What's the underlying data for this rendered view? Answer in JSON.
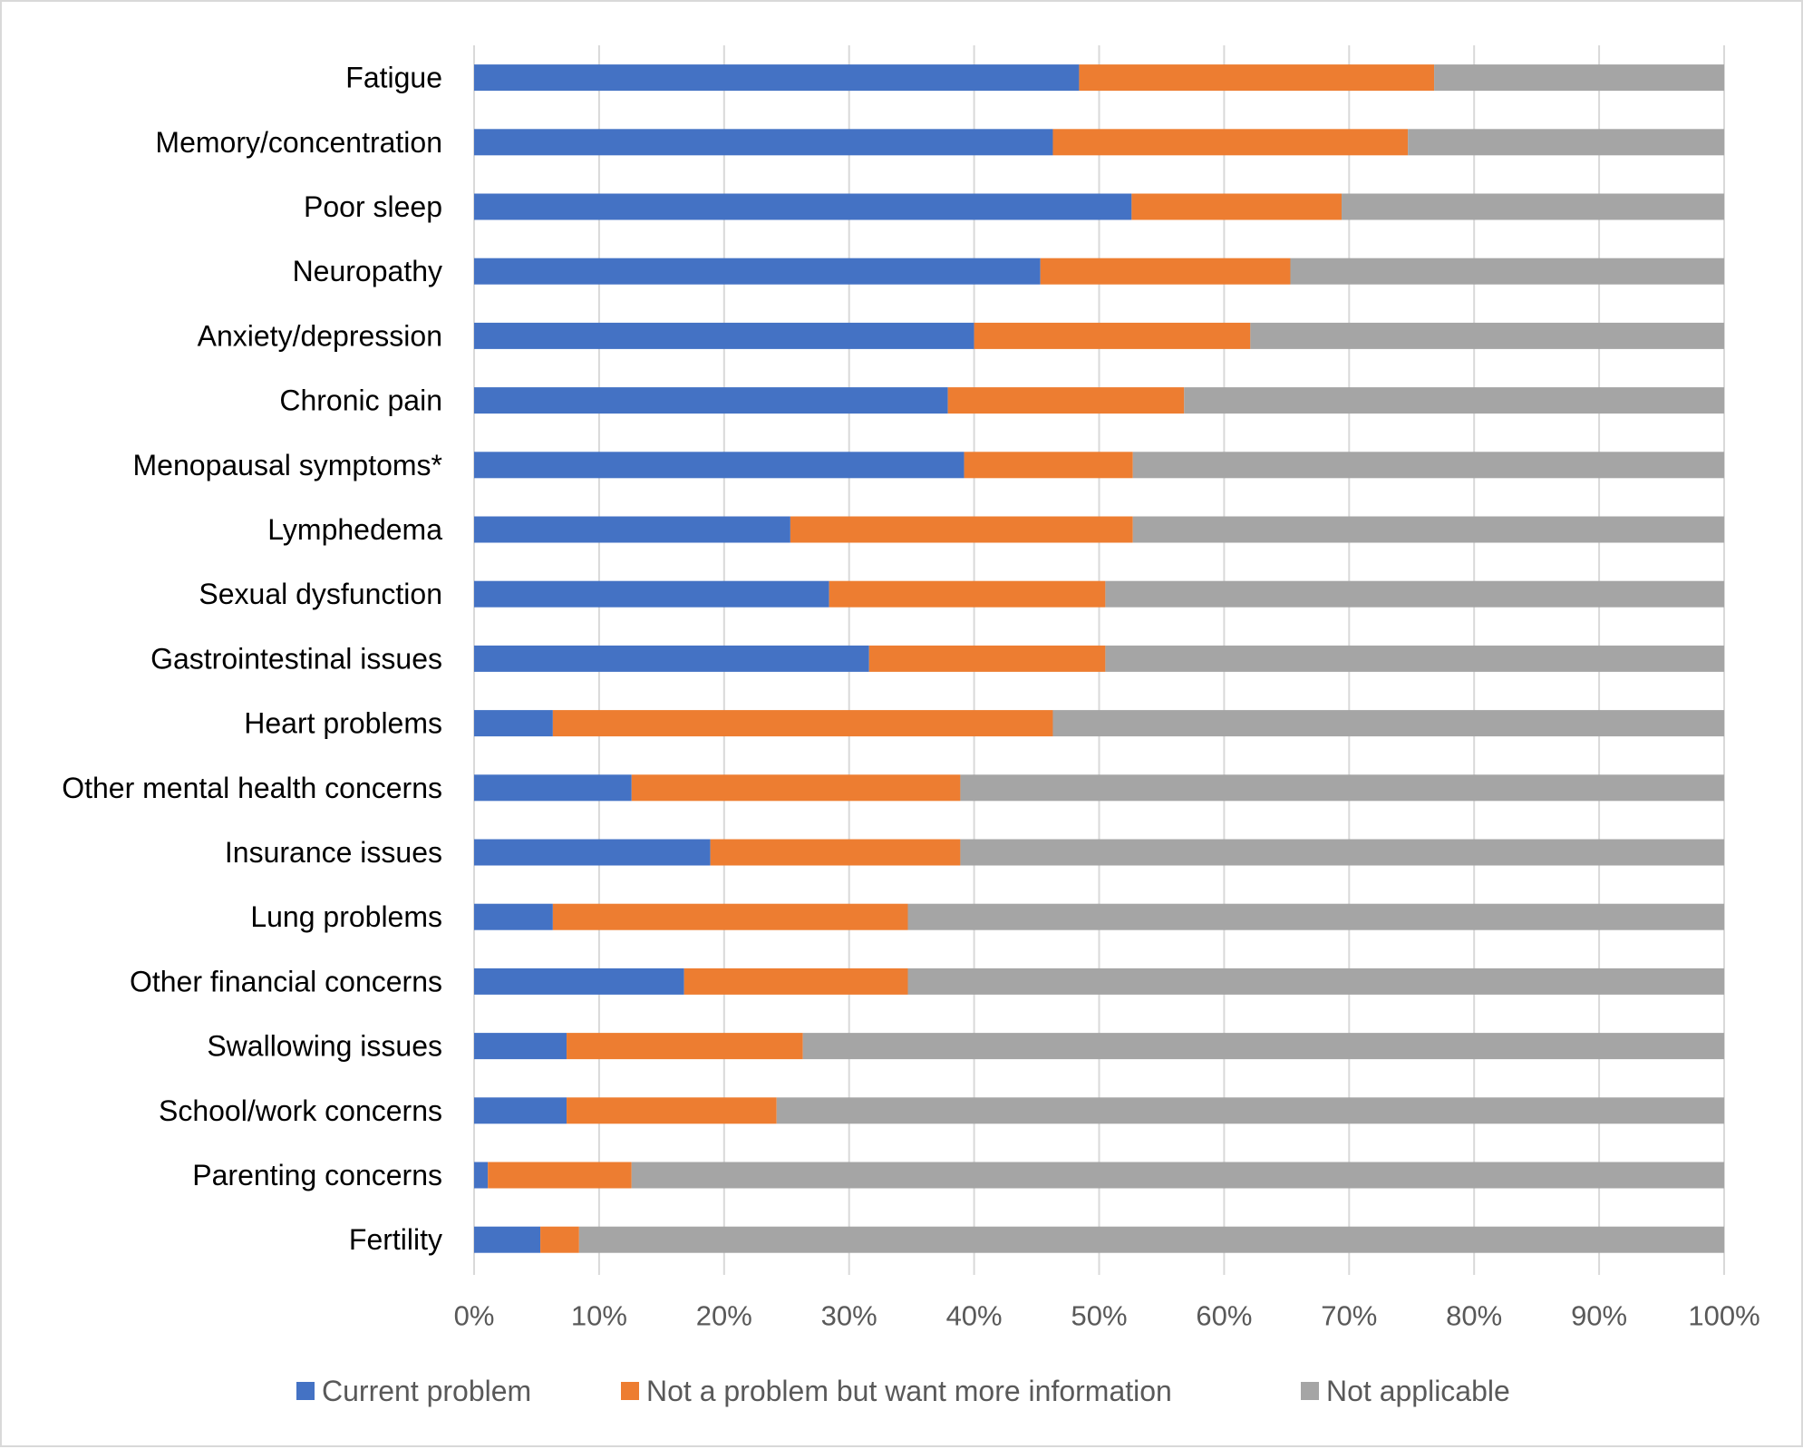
{
  "chart_data": {
    "type": "bar",
    "orientation": "horizontal",
    "stacked": true,
    "title": "",
    "xlabel": "",
    "ylabel": "",
    "xlim": [
      0,
      100
    ],
    "x_ticks": [
      "0%",
      "10%",
      "20%",
      "30%",
      "40%",
      "50%",
      "60%",
      "70%",
      "80%",
      "90%",
      "100%"
    ],
    "grid": "vertical",
    "legend_position": "bottom",
    "categories": [
      "Fatigue",
      "Memory/concentration",
      "Poor sleep",
      "Neuropathy",
      "Anxiety/depression",
      "Chronic pain",
      "Menopausal symptoms*",
      "Lymphedema",
      "Sexual dysfunction",
      "Gastrointestinal issues",
      "Heart problems",
      "Other mental health concerns",
      "Insurance issues",
      "Lung problems",
      "Other financial concerns",
      "Swallowing issues",
      "School/work concerns",
      "Parenting concerns",
      "Fertility"
    ],
    "series": [
      {
        "name": "Current problem",
        "color": "#4472C4",
        "values": [
          48.4,
          46.3,
          52.6,
          45.3,
          40.0,
          37.9,
          39.2,
          25.3,
          28.4,
          31.6,
          6.3,
          12.6,
          18.9,
          6.3,
          16.8,
          7.4,
          7.4,
          1.1,
          5.3
        ]
      },
      {
        "name": "Not a problem but want more information",
        "color": "#ED7D31",
        "values": [
          28.4,
          28.4,
          16.8,
          20.0,
          22.1,
          18.9,
          13.5,
          27.4,
          22.1,
          18.9,
          40.0,
          26.3,
          20.0,
          28.4,
          17.9,
          18.9,
          16.8,
          11.5,
          3.1
        ]
      },
      {
        "name": "Not applicable",
        "color": "#A5A5A5",
        "values": [
          23.2,
          25.3,
          30.6,
          34.7,
          37.9,
          43.2,
          47.3,
          47.3,
          49.5,
          49.5,
          53.7,
          61.1,
          61.1,
          65.3,
          65.3,
          73.7,
          75.8,
          87.4,
          91.6
        ]
      }
    ]
  }
}
